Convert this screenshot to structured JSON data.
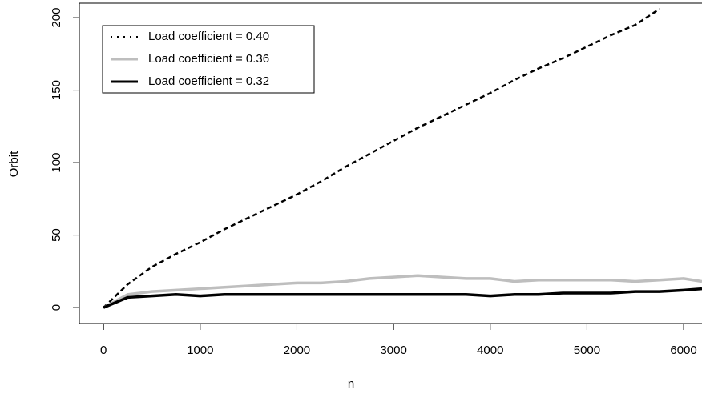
{
  "chart_data": {
    "type": "line",
    "x_label": "n",
    "y_label": "Orbit",
    "x": [
      0,
      250,
      500,
      750,
      1000,
      1250,
      1500,
      1750,
      2000,
      2250,
      2500,
      2750,
      3000,
      3250,
      3500,
      3750,
      4000,
      4250,
      4500,
      4750,
      5000,
      5250,
      5500,
      5750,
      6000,
      6190
    ],
    "series": [
      {
        "name": "Load coefficient = 0.40",
        "color": "#000000",
        "dash": "dashed",
        "values": [
          0,
          16,
          28,
          37,
          45,
          54,
          62,
          70,
          78,
          87,
          97,
          106,
          115,
          124,
          132,
          140,
          148,
          157,
          165,
          172,
          180,
          188,
          195,
          206,
          null,
          null
        ]
      },
      {
        "name": "Load coefficient = 0.36",
        "color": "#bebebe",
        "dash": "solid",
        "values": [
          0,
          9,
          11,
          12,
          13,
          14,
          15,
          16,
          17,
          17,
          18,
          20,
          21,
          22,
          21,
          20,
          20,
          18,
          19,
          19,
          19,
          19,
          18,
          19,
          20,
          18
        ]
      },
      {
        "name": "Load coefficient = 0.32",
        "color": "#000000",
        "dash": "solid",
        "values": [
          0,
          7,
          8,
          9,
          8,
          9,
          9,
          9,
          9,
          9,
          9,
          9,
          9,
          9,
          9,
          9,
          8,
          9,
          9,
          10,
          10,
          10,
          11,
          11,
          12,
          13
        ]
      }
    ],
    "xlim": [
      -250,
      6190
    ],
    "ylim": [
      -11,
      210
    ],
    "xticks": [
      0,
      1000,
      2000,
      3000,
      4000,
      5000,
      6000
    ],
    "yticks": [
      0,
      50,
      100,
      150,
      200
    ],
    "legend": "top-left"
  }
}
